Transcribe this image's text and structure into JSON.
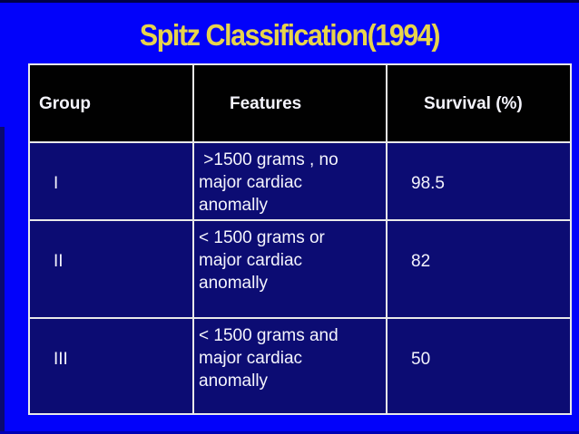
{
  "slide": {
    "title": "Spitz Classification(1994)",
    "colors": {
      "background": "#0202fa",
      "title_text": "#e7d44c",
      "header_bg": "#010101",
      "row_bg": "#0c0c73",
      "gridline": "#e9e9e9",
      "cell_text": "#f4f4fc"
    },
    "table": {
      "columns": [
        "Group",
        "Features",
        "Survival (%)"
      ],
      "rows": [
        {
          "group": "I",
          "features": " >1500 grams , no\nmajor cardiac\nanomally",
          "survival": "98.5"
        },
        {
          "group": "II",
          "features": "< 1500 grams or\nmajor cardiac\nanomally",
          "survival": "82"
        },
        {
          "group": "III",
          "features": "< 1500 grams and\nmajor cardiac\nanomally",
          "survival": "50"
        }
      ]
    }
  }
}
